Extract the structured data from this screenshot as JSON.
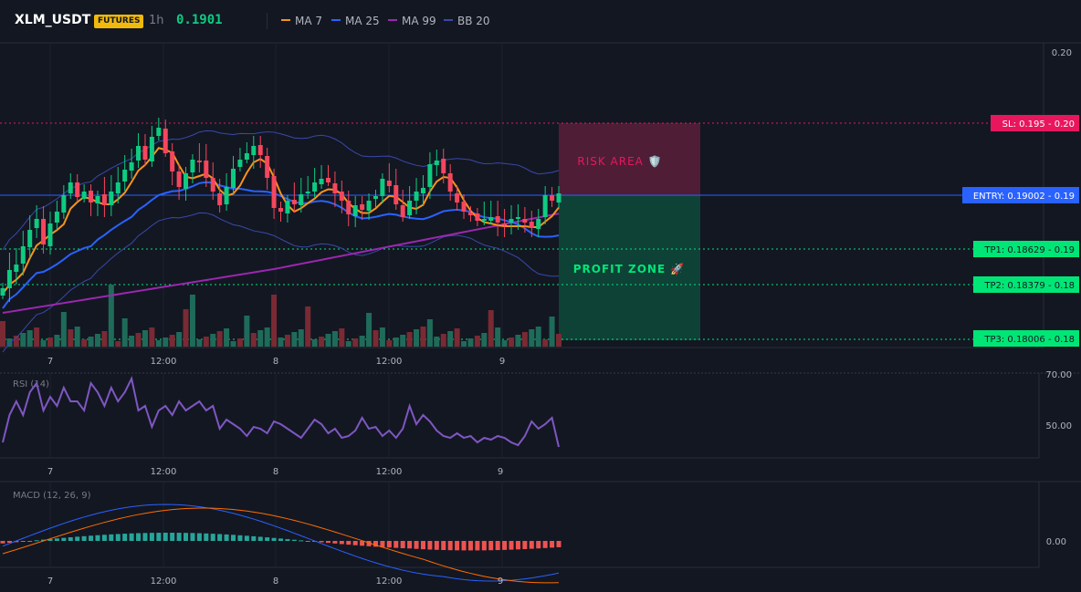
{
  "header": {
    "symbol": "XLM_USDT",
    "badge": "FUTURES",
    "timeframe": "1h",
    "last_price": "0.1901",
    "indicators": [
      {
        "label": "MA 7",
        "color": "#f7931a"
      },
      {
        "label": "MA 25",
        "color": "#2962ff"
      },
      {
        "label": "MA 99",
        "color": "#9c27b0"
      },
      {
        "label": "BB 20",
        "color": "#3949ab"
      }
    ]
  },
  "price_axis": {
    "ticks": [
      "0.20"
    ]
  },
  "levels": {
    "sl": {
      "label": "SL: 0.195 - 0.20",
      "color": "#e8175d"
    },
    "entry": {
      "label": "ENTRY: 0.19002 - 0.19",
      "color": "#2962ff"
    },
    "tp1": {
      "label": "TP1: 0.18629 - 0.19",
      "color": "#00e676"
    },
    "tp2": {
      "label": "TP2: 0.18379 - 0.18",
      "color": "#00e676"
    },
    "tp3": {
      "label": "TP3: 0.18006 - 0.18",
      "color": "#00e676"
    }
  },
  "zones": {
    "risk_label": "RISK AREA 🛡️",
    "profit_label": "PROFIT ZONE 🚀"
  },
  "time_axis": {
    "ticks": [
      "7",
      "12:00",
      "8",
      "12:00",
      "9"
    ]
  },
  "rsi": {
    "label": "RSI (14)",
    "ticks": [
      "70.00",
      "50.00"
    ],
    "color": "#7e57c2"
  },
  "macd": {
    "label": "MACD (12, 26, 9)",
    "ticks": [
      "0.00"
    ],
    "macd_color": "#2962ff",
    "signal_color": "#ff6d00",
    "hist_up": "#26a69a",
    "hist_down": "#ef5350"
  },
  "colors": {
    "up": "#0ecb81",
    "down": "#f6465d",
    "background": "#131722"
  }
}
